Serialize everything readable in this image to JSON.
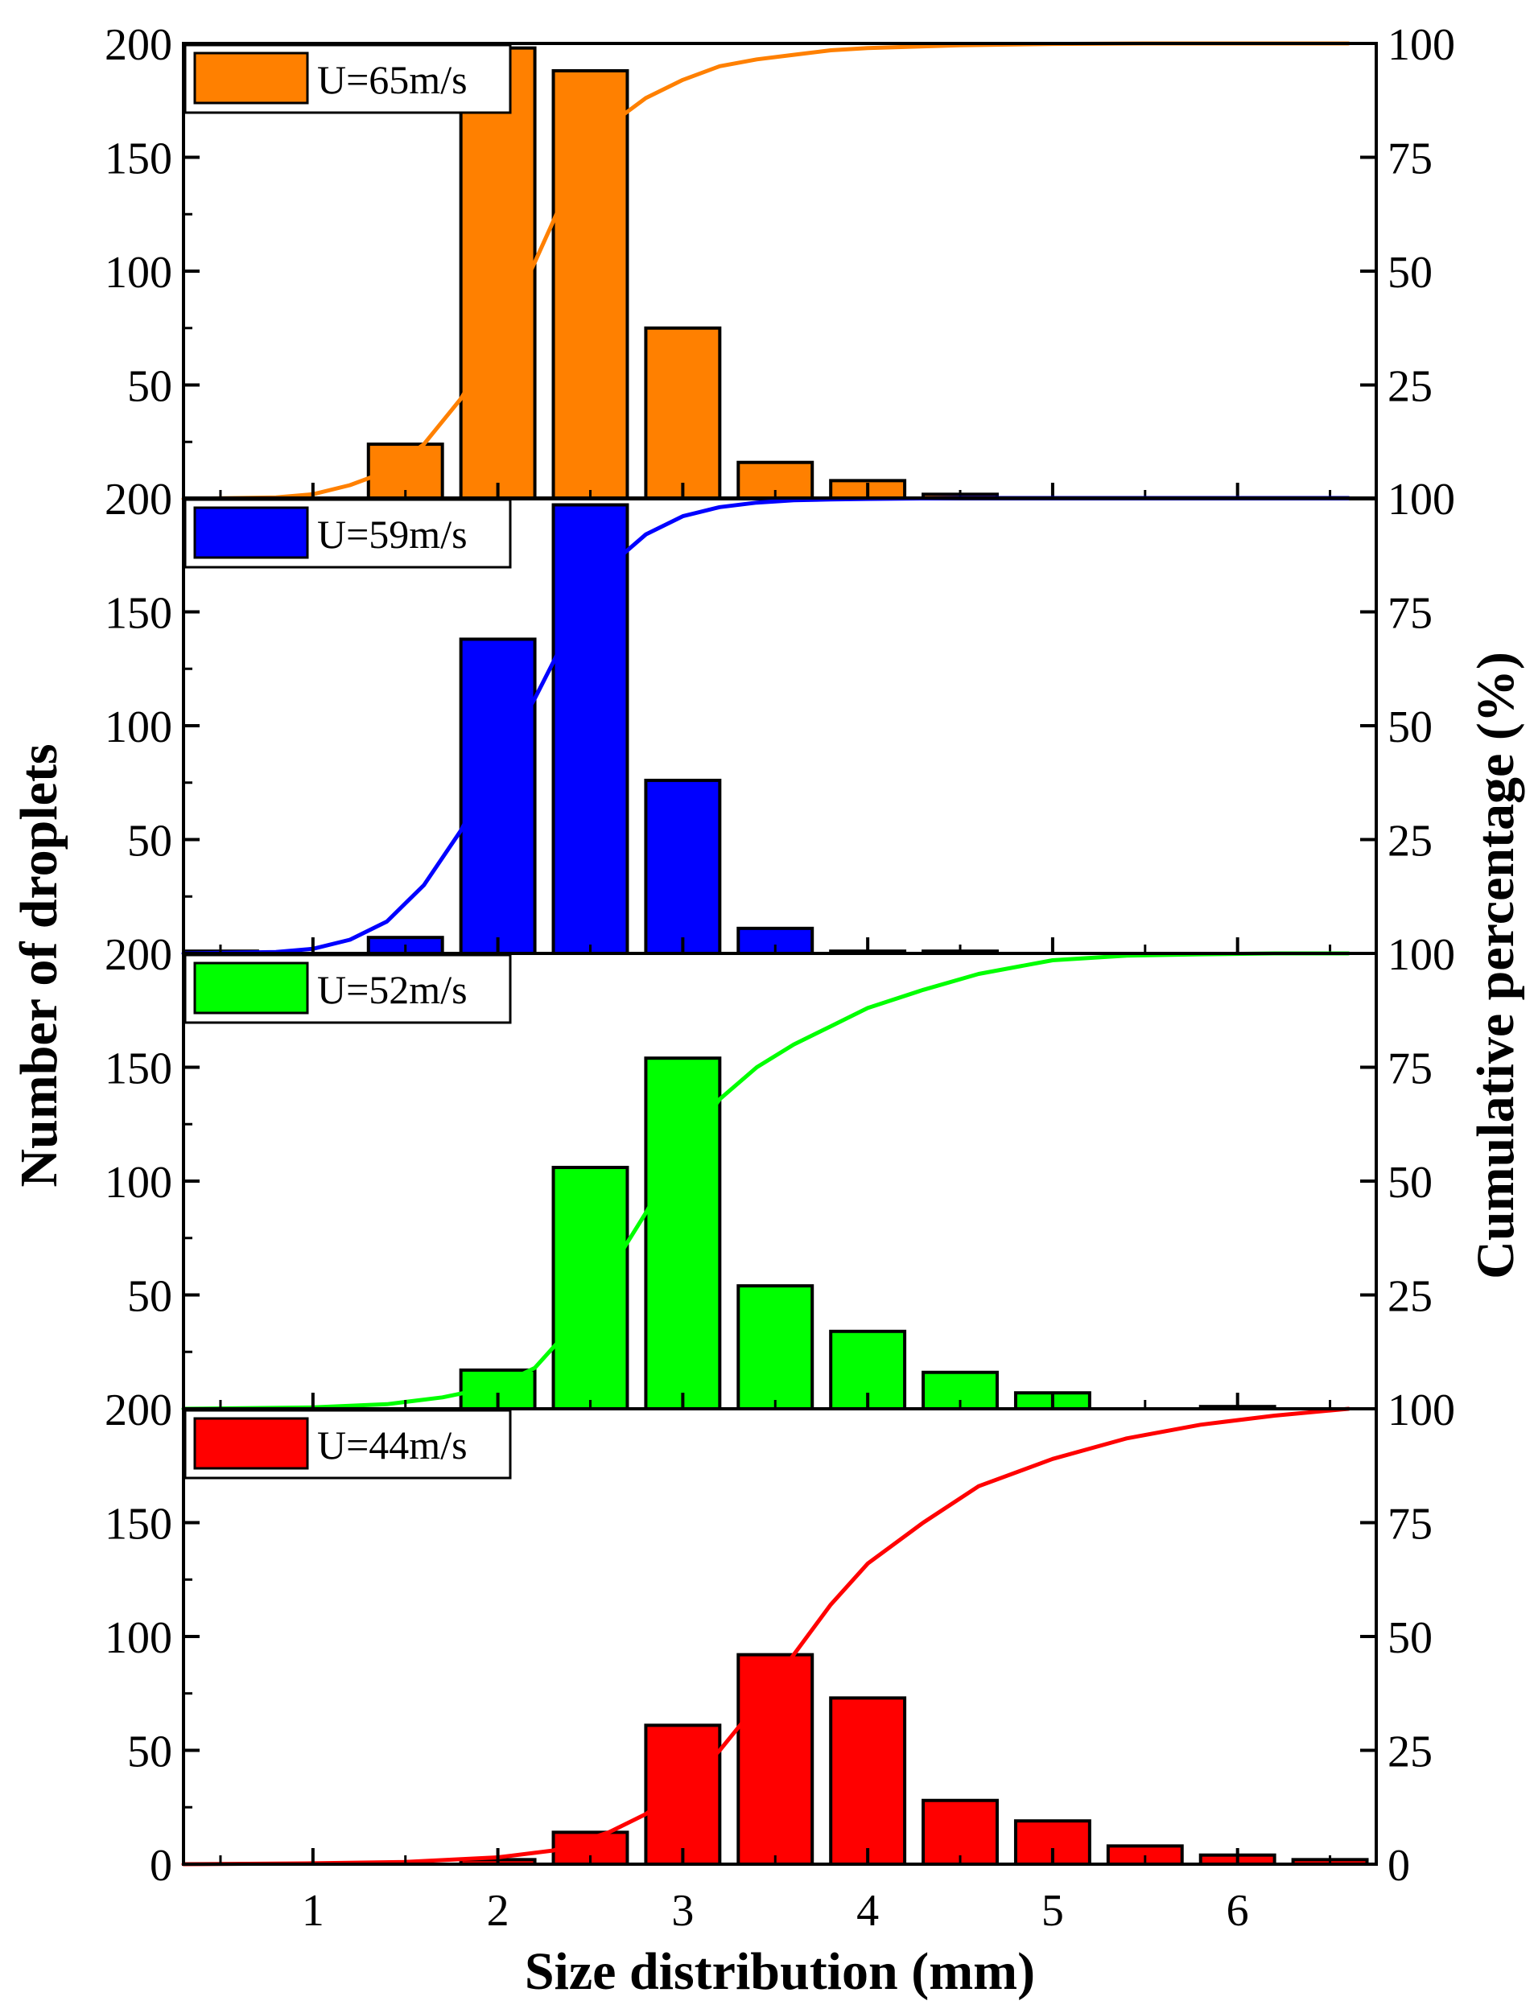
{
  "chart_data": {
    "type": "bar",
    "xlabel": "Size distribution (mm)",
    "ylabel": "Number of droplets",
    "y2label": "Cumulative percentage (%)",
    "xlim": [
      0.3,
      6.75
    ],
    "x_ticks": [
      "1",
      "2",
      "3",
      "4",
      "5",
      "6"
    ],
    "ylim": [
      0,
      200
    ],
    "y_ticks": [
      "0",
      "50",
      "100",
      "150",
      "200"
    ],
    "y2lim": [
      0,
      100
    ],
    "y2_ticks": [
      "0",
      "25",
      "50",
      "75",
      "100"
    ],
    "bin_centers": [
      0.5,
      1.0,
      1.5,
      2.0,
      2.5,
      3.0,
      3.5,
      4.0,
      4.5,
      5.0,
      5.5,
      6.0,
      6.5
    ],
    "panels": [
      {
        "legend": "U=65m/s",
        "color": "#FF8000",
        "values": [
          0,
          0,
          24,
          198,
          188,
          75,
          16,
          8,
          2,
          0,
          0,
          0,
          0
        ],
        "cumulative": {
          "x": [
            0.3,
            0.8,
            1.0,
            1.2,
            1.4,
            1.6,
            1.8,
            2.0,
            2.2,
            2.4,
            2.6,
            2.8,
            3.0,
            3.2,
            3.4,
            3.6,
            3.8,
            4.0,
            4.5,
            5.0,
            5.5,
            6.0,
            6.6
          ],
          "y": [
            0,
            0.3,
            1,
            3,
            6,
            12,
            22,
            35,
            52,
            70,
            82,
            88,
            92,
            95,
            96.5,
            97.5,
            98.5,
            99,
            99.6,
            99.9,
            100,
            100,
            100
          ]
        }
      },
      {
        "legend": "U=59m/s",
        "color": "#0000FF",
        "values": [
          1,
          0,
          7,
          138,
          197,
          76,
          11,
          1,
          1,
          0,
          0,
          0,
          0
        ],
        "cumulative": {
          "x": [
            0.3,
            0.8,
            1.0,
            1.2,
            1.4,
            1.6,
            1.8,
            2.0,
            2.2,
            2.4,
            2.6,
            2.8,
            3.0,
            3.2,
            3.4,
            3.6,
            3.8,
            4.0,
            4.5,
            5.0,
            5.5,
            6.0,
            6.6
          ],
          "y": [
            0,
            0.3,
            1,
            3,
            7,
            15,
            27,
            42,
            56,
            72,
            85,
            92,
            96,
            98,
            99,
            99.5,
            99.7,
            99.8,
            100,
            100,
            100,
            100,
            100
          ]
        }
      },
      {
        "legend": "U=52m/s",
        "color": "#00FF00",
        "values": [
          0,
          0,
          0,
          17,
          106,
          154,
          54,
          34,
          16,
          7,
          0,
          1,
          0
        ],
        "cumulative": {
          "x": [
            0.3,
            1.0,
            1.4,
            1.7,
            2.0,
            2.2,
            2.4,
            2.6,
            2.8,
            3.0,
            3.2,
            3.4,
            3.6,
            3.8,
            4.0,
            4.3,
            4.6,
            5.0,
            5.4,
            5.8,
            6.2,
            6.6
          ],
          "y": [
            0,
            0.3,
            1,
            2.5,
            5,
            9,
            18,
            30,
            43,
            57,
            68,
            75,
            80,
            84,
            88,
            92,
            95.5,
            98.5,
            99.5,
            99.8,
            100,
            100
          ]
        }
      },
      {
        "legend": "U=44m/s",
        "color": "#FF0000",
        "values": [
          0,
          0,
          0,
          2,
          14,
          61,
          92,
          73,
          28,
          19,
          8,
          4,
          2
        ],
        "cumulative": {
          "x": [
            0.3,
            1.0,
            1.5,
            2.0,
            2.3,
            2.6,
            2.8,
            3.0,
            3.2,
            3.4,
            3.6,
            3.8,
            4.0,
            4.3,
            4.6,
            5.0,
            5.4,
            5.8,
            6.2,
            6.6
          ],
          "y": [
            0,
            0.2,
            0.5,
            1.5,
            3,
            7,
            11,
            17,
            25,
            35,
            46,
            57,
            66,
            75,
            83,
            89,
            93.5,
            96.5,
            98.5,
            100
          ]
        }
      }
    ]
  }
}
